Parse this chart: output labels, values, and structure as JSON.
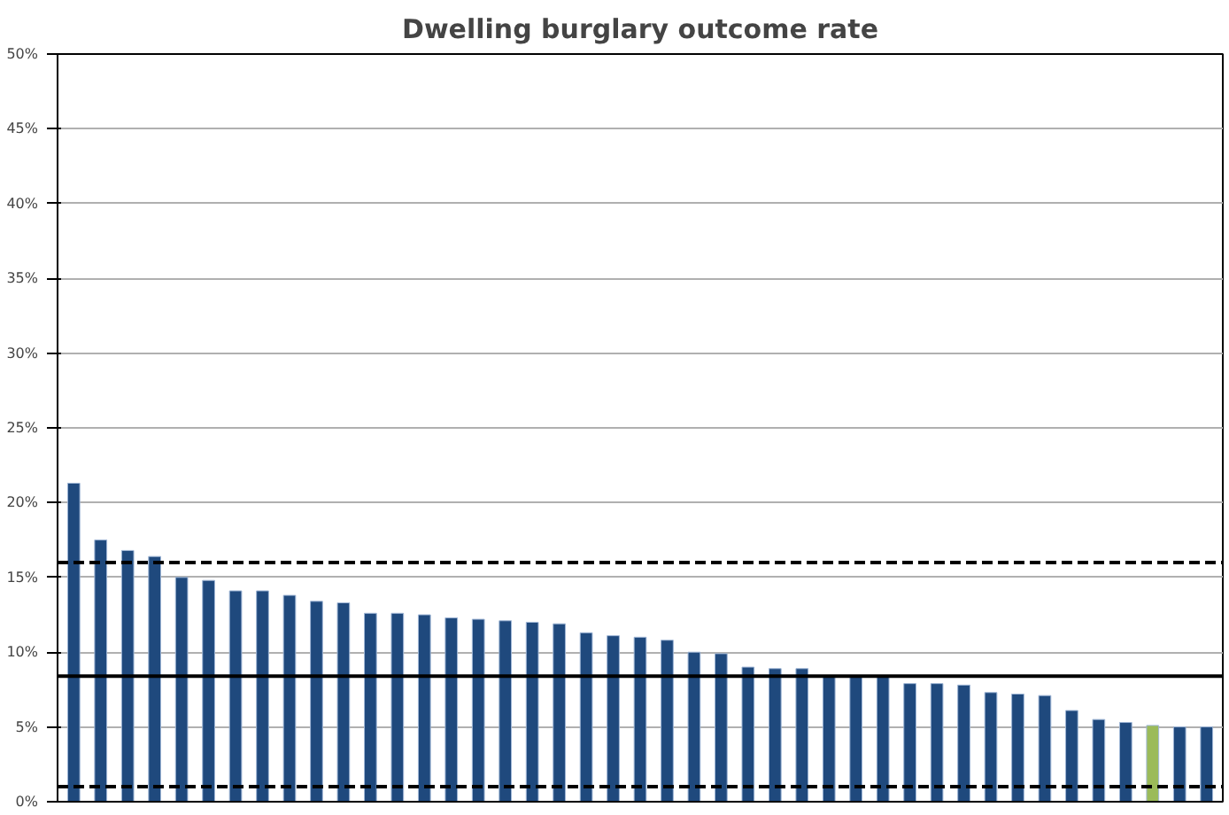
{
  "chart_data": {
    "type": "bar",
    "title": "Dwelling burglary outcome rate",
    "categories": [
      null,
      null,
      null,
      null,
      null,
      null,
      null,
      null,
      null,
      null,
      null,
      null,
      null,
      null,
      null,
      null,
      null,
      null,
      null,
      null,
      null,
      null,
      null,
      null,
      null,
      null,
      null,
      null,
      null,
      null,
      null,
      null,
      null,
      null,
      null,
      null,
      null,
      null,
      null,
      null,
      null,
      null,
      null
    ],
    "values": [
      21.3,
      17.5,
      16.8,
      16.4,
      15.0,
      14.8,
      14.1,
      14.1,
      13.8,
      13.4,
      13.3,
      12.6,
      12.6,
      12.5,
      12.3,
      12.2,
      12.1,
      12.0,
      11.9,
      11.3,
      11.1,
      11.0,
      10.8,
      10.0,
      9.9,
      9.0,
      8.9,
      8.9,
      8.4,
      8.4,
      8.4,
      7.9,
      7.9,
      7.8,
      7.3,
      7.2,
      7.1,
      6.1,
      5.5,
      5.3,
      5.1,
      5.0,
      5.0
    ],
    "colors": [
      "#1f497d",
      "#1f497d",
      "#1f497d",
      "#1f497d",
      "#1f497d",
      "#1f497d",
      "#1f497d",
      "#1f497d",
      "#1f497d",
      "#1f497d",
      "#1f497d",
      "#1f497d",
      "#1f497d",
      "#1f497d",
      "#1f497d",
      "#1f497d",
      "#1f497d",
      "#1f497d",
      "#1f497d",
      "#1f497d",
      "#1f497d",
      "#1f497d",
      "#1f497d",
      "#1f497d",
      "#1f497d",
      "#1f497d",
      "#1f497d",
      "#1f497d",
      "#1f497d",
      "#1f497d",
      "#1f497d",
      "#1f497d",
      "#1f497d",
      "#1f497d",
      "#1f497d",
      "#1f497d",
      "#1f497d",
      "#1f497d",
      "#1f497d",
      "#1f497d",
      "#9bbb59",
      "#1f497d",
      "#1f497d"
    ],
    "ylim": [
      0,
      50
    ],
    "yticks": [
      {
        "value": 0,
        "label": "0%"
      },
      {
        "value": 5,
        "label": "5%"
      },
      {
        "value": 10,
        "label": "10%"
      },
      {
        "value": 15,
        "label": "15%"
      },
      {
        "value": 20,
        "label": "20%"
      },
      {
        "value": 25,
        "label": "25%"
      },
      {
        "value": 30,
        "label": "30%"
      },
      {
        "value": 35,
        "label": "35%"
      },
      {
        "value": 40,
        "label": "40%"
      },
      {
        "value": 45,
        "label": "45%"
      },
      {
        "value": 50,
        "label": "50%"
      }
    ],
    "grid": "y",
    "ref_lines": [
      {
        "axis": "y",
        "value": 16.0,
        "line_style": "dashed",
        "color": "#000000"
      },
      {
        "axis": "y",
        "value": 8.4,
        "line_style": "solid",
        "color": "#000000"
      },
      {
        "axis": "y",
        "value": 1.0,
        "line_style": "dashed",
        "color": "#000000"
      }
    ]
  }
}
